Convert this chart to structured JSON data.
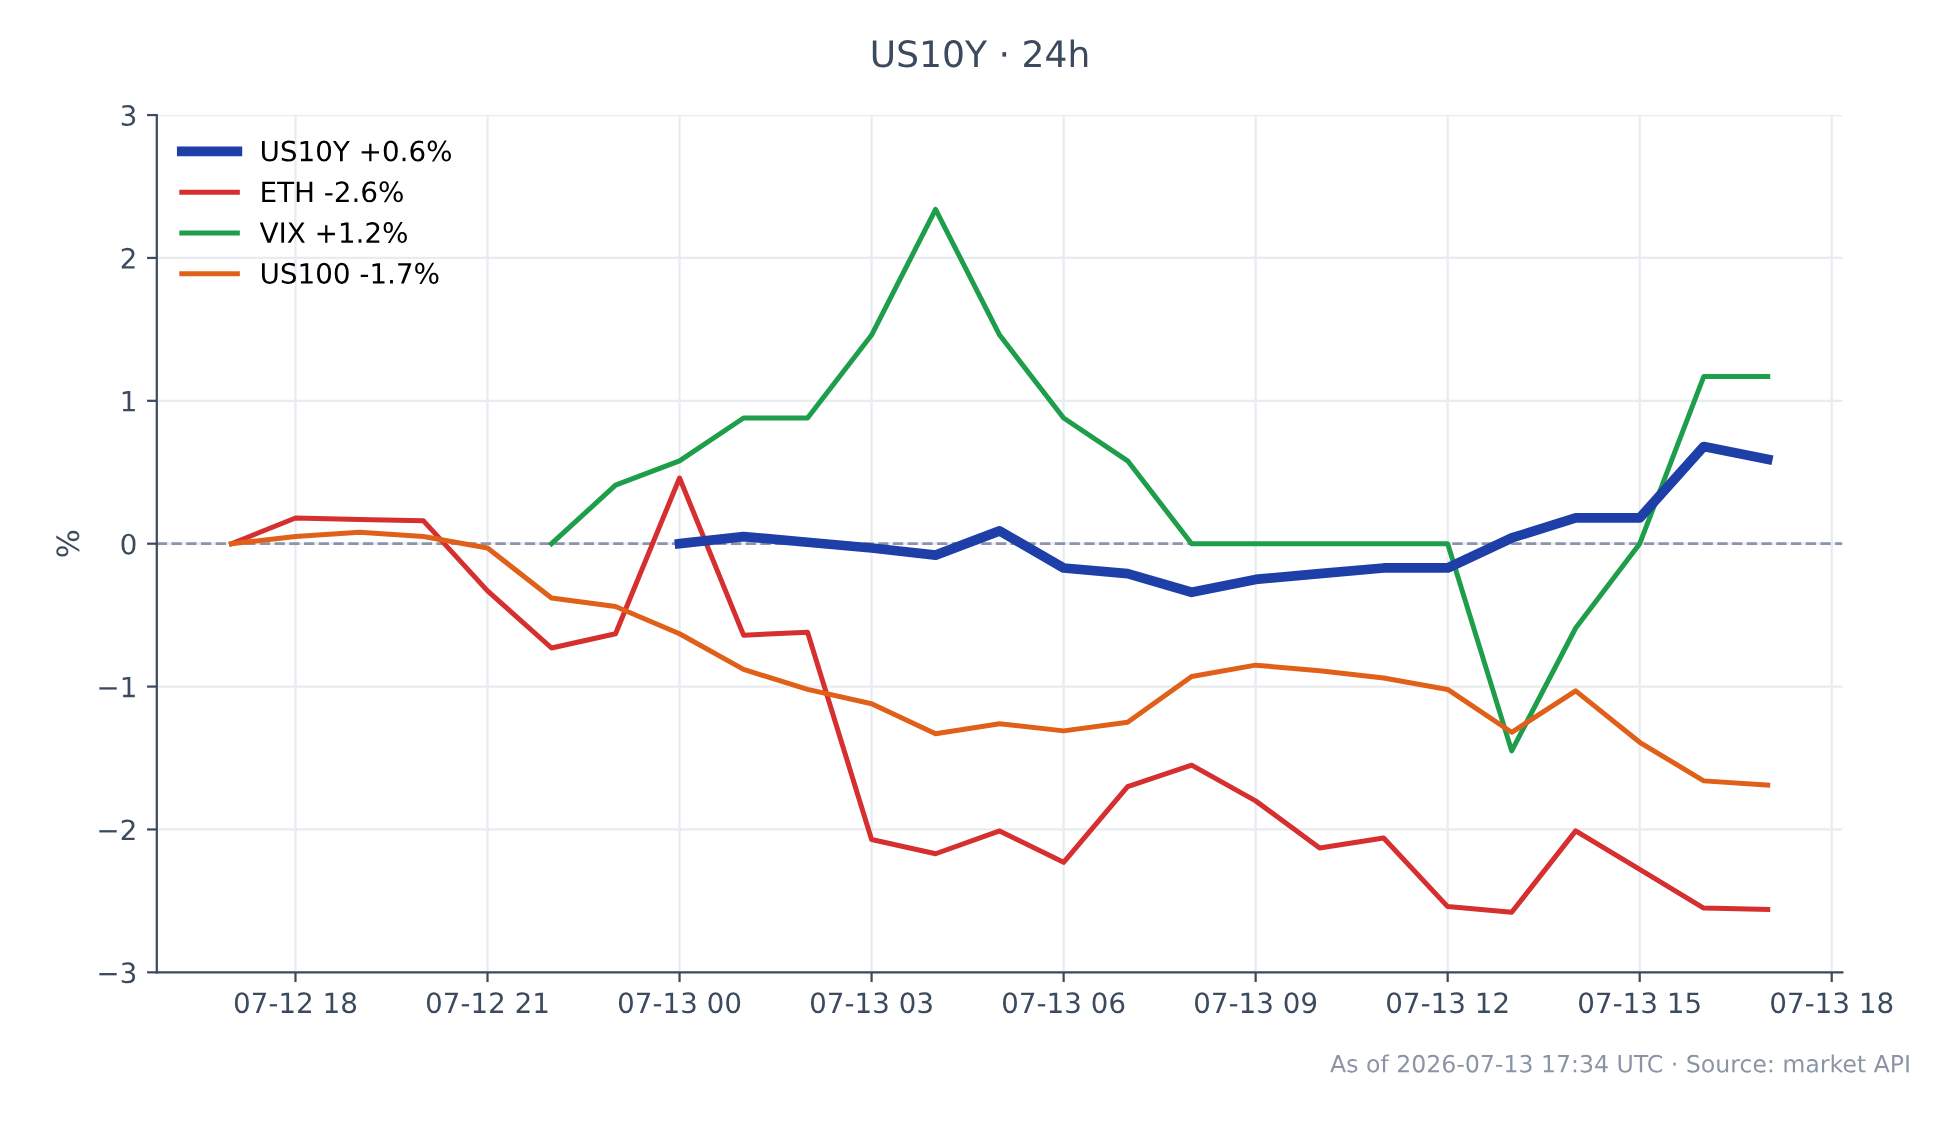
{
  "chart_data": {
    "type": "line",
    "title": "US10Y · 24h",
    "ylabel": "%",
    "annotations": [
      "As of 2026-07-13 17:34 UTC · Source: market API"
    ],
    "xlim": [
      "2026-07-12T15:50",
      "2026-07-13T18:10"
    ],
    "xticks": [
      {
        "value": "2026-07-12T18:00",
        "label": "07-12 18"
      },
      {
        "value": "2026-07-12T21:00",
        "label": "07-12 21"
      },
      {
        "value": "2026-07-13T00:00",
        "label": "07-13 00"
      },
      {
        "value": "2026-07-13T03:00",
        "label": "07-13 03"
      },
      {
        "value": "2026-07-13T06:00",
        "label": "07-13 06"
      },
      {
        "value": "2026-07-13T09:00",
        "label": "07-13 09"
      },
      {
        "value": "2026-07-13T12:00",
        "label": "07-13 12"
      },
      {
        "value": "2026-07-13T15:00",
        "label": "07-13 15"
      },
      {
        "value": "2026-07-13T18:00",
        "label": "07-13 18"
      }
    ],
    "ylim": [
      -3,
      3
    ],
    "yticks": [
      {
        "value": -3,
        "label": "−3"
      },
      {
        "value": -2,
        "label": "−2"
      },
      {
        "value": -1,
        "label": "−1"
      },
      0,
      1,
      2,
      3
    ],
    "grid": true,
    "legend": "top left",
    "marker": "none",
    "line_style": "solid",
    "ref_lines": [
      {
        "axis": "y",
        "value": 0,
        "label": null,
        "color": "#8a94ad",
        "line_style": "dashed"
      }
    ],
    "series": [
      {
        "name": "US10Y +0.6%",
        "color": "#1f3fa8",
        "x": [
          "2026-07-13T00:00",
          "2026-07-13T01:00",
          "2026-07-13T02:00",
          "2026-07-13T03:00",
          "2026-07-13T04:00",
          "2026-07-13T05:00",
          "2026-07-13T06:00",
          "2026-07-13T07:00",
          "2026-07-13T08:00",
          "2026-07-13T09:00",
          "2026-07-13T10:00",
          "2026-07-13T11:00",
          "2026-07-13T12:00",
          "2026-07-13T13:00",
          "2026-07-13T14:00",
          "2026-07-13T15:00",
          "2026-07-13T16:00",
          "2026-07-13T17:00"
        ],
        "values": [
          0,
          0.05,
          0.01,
          -0.03,
          -0.08,
          0.09,
          -0.17,
          -0.21,
          -0.34,
          -0.25,
          -0.21,
          -0.17,
          -0.17,
          0.04,
          0.18,
          0.18,
          0.68,
          0.59
        ]
      },
      {
        "name": "ETH -2.6%",
        "color": "#d62f2f",
        "x": [
          "2026-07-12T17:00",
          "2026-07-12T18:00",
          "2026-07-12T19:00",
          "2026-07-12T20:00",
          "2026-07-12T21:00",
          "2026-07-12T22:00",
          "2026-07-12T23:00",
          "2026-07-13T00:00",
          "2026-07-13T01:00",
          "2026-07-13T02:00",
          "2026-07-13T03:00",
          "2026-07-13T04:00",
          "2026-07-13T05:00",
          "2026-07-13T06:00",
          "2026-07-13T07:00",
          "2026-07-13T08:00",
          "2026-07-13T09:00",
          "2026-07-13T10:00",
          "2026-07-13T11:00",
          "2026-07-13T12:00",
          "2026-07-13T13:00",
          "2026-07-13T14:00",
          "2026-07-13T15:00",
          "2026-07-13T16:00",
          "2026-07-13T17:00"
        ],
        "values": [
          0,
          0.18,
          0.17,
          0.16,
          -0.33,
          -0.73,
          -0.63,
          0.46,
          -0.64,
          -0.62,
          -2.07,
          -2.17,
          -2.01,
          -2.23,
          -1.7,
          -1.55,
          -1.8,
          -2.13,
          -2.06,
          -2.54,
          -2.58,
          -2.01,
          -2.28,
          -2.55,
          -2.56
        ]
      },
      {
        "name": "VIX +1.2%",
        "color": "#1e9e4a",
        "x": [
          "2026-07-12T22:00",
          "2026-07-12T23:00",
          "2026-07-13T00:00",
          "2026-07-13T01:00",
          "2026-07-13T02:00",
          "2026-07-13T03:00",
          "2026-07-13T04:00",
          "2026-07-13T05:00",
          "2026-07-13T06:00",
          "2026-07-13T07:00",
          "2026-07-13T08:00",
          "2026-07-13T09:00",
          "2026-07-13T10:00",
          "2026-07-13T11:00",
          "2026-07-13T12:00",
          "2026-07-13T13:00",
          "2026-07-13T14:00",
          "2026-07-13T15:00",
          "2026-07-13T16:00",
          "2026-07-13T17:00"
        ],
        "values": [
          0,
          0.41,
          0.58,
          0.88,
          0.88,
          1.46,
          2.34,
          1.46,
          0.88,
          0.58,
          0,
          0,
          0,
          0,
          0,
          -1.45,
          -0.59,
          0,
          1.17,
          1.17
        ]
      },
      {
        "name": "US100 -1.7%",
        "color": "#e0601a",
        "x": [
          "2026-07-12T17:00",
          "2026-07-12T18:00",
          "2026-07-12T19:00",
          "2026-07-12T20:00",
          "2026-07-12T21:00",
          "2026-07-12T22:00",
          "2026-07-12T23:00",
          "2026-07-13T00:00",
          "2026-07-13T01:00",
          "2026-07-13T02:00",
          "2026-07-13T03:00",
          "2026-07-13T04:00",
          "2026-07-13T05:00",
          "2026-07-13T06:00",
          "2026-07-13T07:00",
          "2026-07-13T08:00",
          "2026-07-13T09:00",
          "2026-07-13T10:00",
          "2026-07-13T11:00",
          "2026-07-13T12:00",
          "2026-07-13T13:00",
          "2026-07-13T14:00",
          "2026-07-13T15:00",
          "2026-07-13T16:00",
          "2026-07-13T17:00"
        ],
        "values": [
          0,
          0.05,
          0.08,
          0.05,
          -0.03,
          -0.38,
          -0.44,
          -0.63,
          -0.88,
          -1.02,
          -1.12,
          -1.33,
          -1.26,
          -1.31,
          -1.25,
          -0.93,
          -0.85,
          -0.89,
          -0.94,
          -1.02,
          -1.32,
          -1.03,
          -1.39,
          -1.66,
          -1.69
        ]
      }
    ]
  }
}
